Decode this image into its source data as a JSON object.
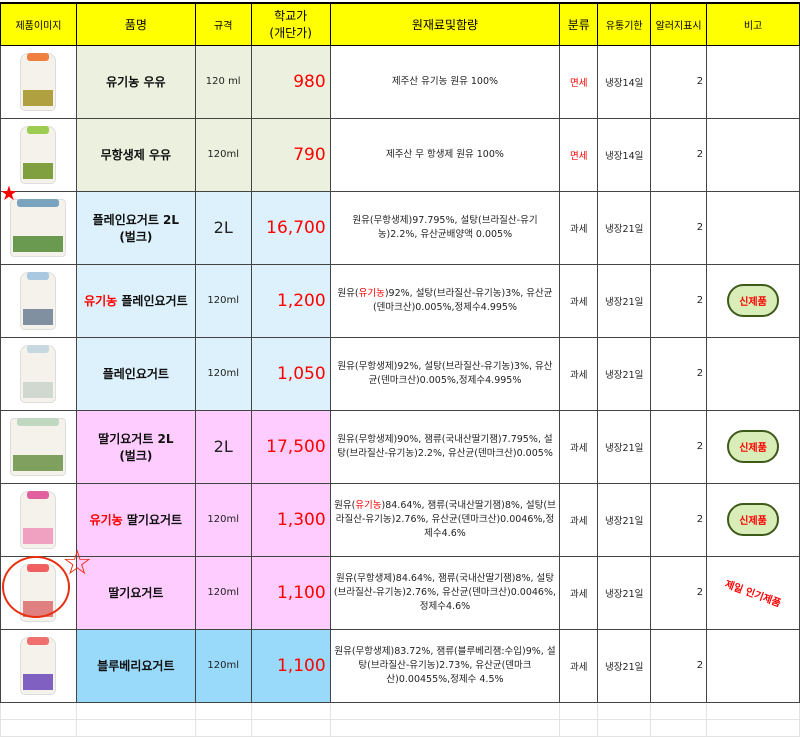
{
  "headers": [
    "제품이미지",
    "품명",
    "규격",
    "학교가\n(개단가)",
    "원재료및함량",
    "분류",
    "유통기한",
    "알러지표시",
    "비고"
  ],
  "header_price": [
    "학교가",
    "(개단가)"
  ],
  "colors": {
    "header": "#ffff00",
    "price": "#ff0000",
    "green_row": "#ebf1de",
    "blue_row": "#dcf1fb",
    "pink_row": "#ffccff",
    "blueberry_row": "#99dafb"
  },
  "rows": [
    {
      "image": "milk-bottle-orange",
      "name": "유기농 우유",
      "spec": "120 ml",
      "price": "980",
      "ingredients": "제주산 유기농 원유 100%",
      "category": "면세",
      "category_red": true,
      "shelf_life": "냉장14일",
      "allergy": "2",
      "note": ""
    },
    {
      "image": "milk-bottle-green",
      "name": "무항생제 우유",
      "spec": "120ml",
      "price": "790",
      "ingredients": "제주산 무 항생제 원유 100%",
      "category": "면세",
      "category_red": true,
      "shelf_life": "냉장14일",
      "allergy": "2",
      "note": ""
    },
    {
      "image": "bulk-yogurt-bag",
      "name": "플레인요거트 2L\n(벌크)",
      "spec": "2L",
      "price": "16,700",
      "ingredients": "원유(무항생제)97.795%, 설탕(브라질산-유기농)2.2%, 유산균배양액 0.005%",
      "category": "과세",
      "shelf_life": "냉장21일",
      "allergy": "2",
      "note": ""
    },
    {
      "image": "yogurt-bottle-organic",
      "name_prefix": "유기농",
      "name": " 플레인요거트",
      "spec": "120ml",
      "price": "1,200",
      "ingredients_prefix": "원유(",
      "ingredients_red": "유기농",
      "ingredients": ")92%, 설탕(브라질산-유기농)3%, 유산균(덴마크산)0.005%,정제수4.995%",
      "category": "과세",
      "shelf_life": "냉장21일",
      "allergy": "2",
      "note": "신제품"
    },
    {
      "image": "yogurt-bottle-plain",
      "name": "플레인요거트",
      "spec": "120ml",
      "price": "1,050",
      "ingredients": "원유(무항생제)92%, 설탕(브라질산-유기농)3%, 유산균(덴마크산)0.005%,정제수4.995%",
      "category": "과세",
      "shelf_life": "냉장21일",
      "allergy": "2",
      "note": ""
    },
    {
      "image": "bulk-strawberry-bag",
      "name": "딸기요거트 2L\n(벌크)",
      "spec": "2L",
      "price": "17,500",
      "ingredients": "원유(무항생제)90%, 잼류(국내산딸기잼)7.795%, 설탕(브라질산-유기농)2.2%, 유산균(덴마크산)0.005%",
      "category": "과세",
      "shelf_life": "냉장21일",
      "allergy": "2",
      "note": "신제품"
    },
    {
      "image": "yogurt-bottle-pink",
      "name_prefix": "유기농",
      "name": " 딸기요거트",
      "spec": "120ml",
      "price": "1,300",
      "ingredients_prefix": "원유(",
      "ingredients_red": "유기농",
      "ingredients": ")84.64%, 잼류(국내산딸기잼)8%, 설탕(브라질산-유기농)2.76%, 유산균(덴마크산)0.0046%,정제수4.6%",
      "category": "과세",
      "shelf_life": "냉장21일",
      "allergy": "2",
      "note": "신제품"
    },
    {
      "image": "yogurt-bottle-strawberry",
      "name": "딸기요거트",
      "spec": "120ml",
      "price": "1,100",
      "ingredients": "원유(무항생제)84.64%, 잼류(국내산딸기잼)8%, 설탕(브라질산-유기농)2.76%, 유산균(덴마크산)0.0046%, 정제수4.6%",
      "category": "과세",
      "shelf_life": "냉장21일",
      "allergy": "2",
      "note_popular": "제일 인기제품"
    },
    {
      "image": "yogurt-bottle-blueberry",
      "name": "블루베리요거트",
      "spec": "120ml",
      "price": "1,100",
      "ingredients": "원유(무항생제)83.72%, 잼류(블루베리잼:수입)9%, 설탕(브라질산-유기농)2.73%, 유산균(덴마크산)0.00455%,정제수 4.5%",
      "category": "과세",
      "shelf_life": "냉장21일",
      "allergy": "2",
      "note": ""
    }
  ]
}
